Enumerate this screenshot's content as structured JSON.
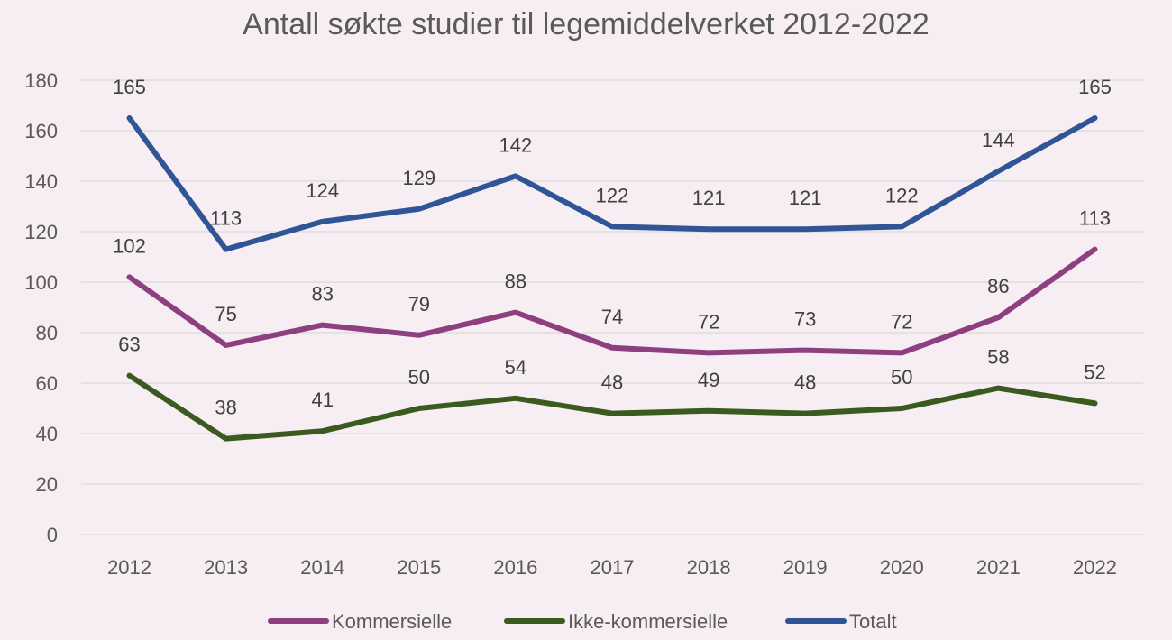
{
  "chart_data": {
    "type": "line",
    "title": "Antall søkte studier til legemiddelverket 2012-2022",
    "categories": [
      "2012",
      "2013",
      "2014",
      "2015",
      "2016",
      "2017",
      "2018",
      "2019",
      "2020",
      "2021",
      "2022"
    ],
    "ylim": [
      0,
      180
    ],
    "yticks": [
      "0",
      "20",
      "40",
      "60",
      "80",
      "100",
      "120",
      "140",
      "160",
      "180"
    ],
    "grid": true,
    "legend_position": "bottom",
    "series": [
      {
        "name": "Kommersielle",
        "color": "#8e3f7f",
        "values": [
          102,
          75,
          83,
          79,
          88,
          74,
          72,
          73,
          72,
          86,
          113
        ]
      },
      {
        "name": "Ikke-kommersielle",
        "color": "#3b5a1f",
        "values": [
          63,
          38,
          41,
          50,
          54,
          48,
          49,
          48,
          50,
          58,
          52
        ]
      },
      {
        "name": "Totalt",
        "color": "#2f5597",
        "values": [
          165,
          113,
          124,
          129,
          142,
          122,
          121,
          121,
          122,
          144,
          165
        ]
      }
    ]
  }
}
